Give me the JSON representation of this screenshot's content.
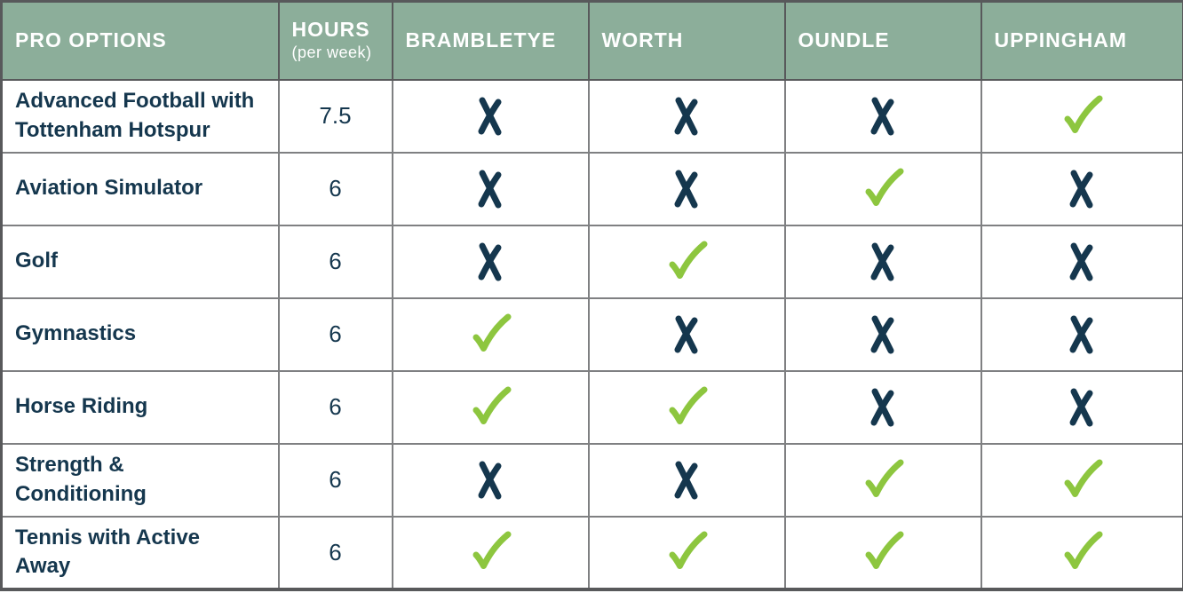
{
  "ui": {
    "header": {
      "pro_options": "PRO OPTIONS",
      "hours_title": "HOURS",
      "hours_subtitle": "(per week)",
      "schools": [
        "BRAMBLETYE",
        "WORTH",
        "OUNDLE",
        "UPPINGHAM"
      ]
    },
    "colors": {
      "header_bg": "#8cae9a",
      "header_text": "#ffffff",
      "navy": "#15374e",
      "check_green": "#8dc63f",
      "border_outer": "#58595b",
      "border_inner": "#7f8082"
    },
    "icons": {
      "yes": "check-icon",
      "no": "cross-icon"
    }
  },
  "chart_data": {
    "type": "table",
    "columns": [
      "PRO OPTIONS",
      "HOURS (per week)",
      "BRAMBLETYE",
      "WORTH",
      "OUNDLE",
      "UPPINGHAM"
    ],
    "rows": [
      {
        "option": "Advanced Football with Tottenham Hotspur",
        "hours": "7.5",
        "availability": [
          "no",
          "no",
          "no",
          "yes"
        ]
      },
      {
        "option": "Aviation Simulator",
        "hours": "6",
        "availability": [
          "no",
          "no",
          "yes",
          "no"
        ]
      },
      {
        "option": "Golf",
        "hours": "6",
        "availability": [
          "no",
          "yes",
          "no",
          "no"
        ]
      },
      {
        "option": "Gymnastics",
        "hours": "6",
        "availability": [
          "yes",
          "no",
          "no",
          "no"
        ]
      },
      {
        "option": "Horse Riding",
        "hours": "6",
        "availability": [
          "yes",
          "yes",
          "no",
          "no"
        ]
      },
      {
        "option": "Strength & Conditioning",
        "hours": "6",
        "availability": [
          "no",
          "no",
          "yes",
          "yes"
        ]
      },
      {
        "option": "Tennis with Active Away",
        "hours": "6",
        "availability": [
          "yes",
          "yes",
          "yes",
          "yes"
        ]
      }
    ]
  }
}
